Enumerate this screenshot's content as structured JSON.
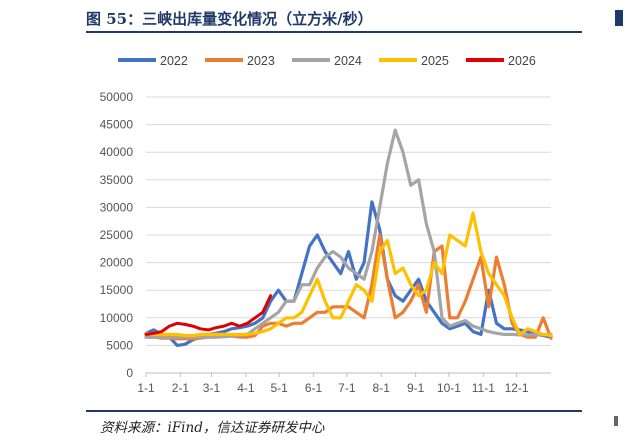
{
  "title": "图 55：三峡出库量变化情况（立方米/秒）",
  "source": "资料来源：iFind，信达证券研发中心",
  "chart_data": {
    "type": "line",
    "ylim": [
      0,
      50000
    ],
    "yticks": [
      "0",
      "5000",
      "10000",
      "15000",
      "20000",
      "25000",
      "30000",
      "35000",
      "40000",
      "45000",
      "50000"
    ],
    "xticks": [
      "1-1",
      "2-1",
      "3-1",
      "4-1",
      "5-1",
      "6-1",
      "7-1",
      "8-1",
      "9-1",
      "10-1",
      "11-1",
      "12-1"
    ],
    "grid": true,
    "legend_position": "top",
    "series": [
      {
        "name": "2022",
        "color": "#4472C4",
        "values": [
          7200,
          7800,
          7000,
          6500,
          5000,
          5200,
          6000,
          6500,
          7000,
          7200,
          7500,
          8000,
          8200,
          8500,
          9000,
          10000,
          13000,
          15000,
          13000,
          13000,
          18000,
          23000,
          25000,
          22000,
          20000,
          18000,
          22000,
          17000,
          20000,
          31000,
          26000,
          17000,
          14000,
          13000,
          15000,
          17000,
          13000,
          11000,
          9000,
          8000,
          8500,
          9000,
          7500,
          7000,
          15000,
          9000,
          8000,
          8000,
          7800,
          7500,
          7000,
          6800,
          6500
        ]
      },
      {
        "name": "2023",
        "color": "#ED7D31",
        "values": [
          6500,
          6500,
          6300,
          6300,
          6200,
          6200,
          6200,
          6300,
          6500,
          6500,
          6600,
          6700,
          6500,
          6500,
          6800,
          8500,
          9000,
          9000,
          8500,
          9000,
          9000,
          10000,
          11000,
          11000,
          12000,
          12000,
          12000,
          11000,
          10000,
          16000,
          25000,
          17000,
          10000,
          11000,
          13000,
          16000,
          11000,
          22000,
          23000,
          10000,
          10000,
          13000,
          17000,
          21000,
          12000,
          21000,
          16000,
          9000,
          7000,
          6500,
          6500,
          10000,
          6300
        ]
      },
      {
        "name": "2024",
        "color": "#A5A5A5",
        "values": [
          6500,
          6500,
          6500,
          6500,
          6500,
          6500,
          6500,
          6500,
          6500,
          6600,
          6600,
          6700,
          6800,
          7000,
          8000,
          9000,
          10000,
          11000,
          13000,
          13000,
          16000,
          16000,
          19000,
          21000,
          22000,
          21000,
          19000,
          18000,
          17000,
          22000,
          30000,
          38000,
          44000,
          40000,
          34000,
          35000,
          27000,
          22000,
          10000,
          8500,
          9000,
          9500,
          8500,
          8000,
          7500,
          7200,
          7000,
          7000,
          6900,
          6900,
          6900,
          6900,
          7000
        ]
      },
      {
        "name": "2025",
        "color": "#FFC000",
        "values": [
          7200,
          7000,
          7000,
          7000,
          7000,
          6800,
          6800,
          7000,
          7000,
          7000,
          7000,
          7000,
          7000,
          7000,
          7200,
          7500,
          8000,
          9000,
          10000,
          10000,
          11000,
          14000,
          17000,
          13000,
          10000,
          10000,
          13000,
          16000,
          15000,
          13000,
          22000,
          24000,
          18000,
          19000,
          16000,
          14000,
          15000,
          20000,
          18000,
          25000,
          24000,
          23000,
          29000,
          22000,
          18000,
          16000,
          14000,
          10000,
          7000,
          8000,
          7500,
          7000,
          6800
        ]
      },
      {
        "name": "2026",
        "color": "#E00000",
        "values": [
          7000,
          7200,
          7500,
          8500,
          9000,
          8800,
          8500,
          8000,
          7800,
          8200,
          8500,
          9000,
          8500,
          9000,
          10000,
          11000,
          14000
        ]
      }
    ]
  }
}
